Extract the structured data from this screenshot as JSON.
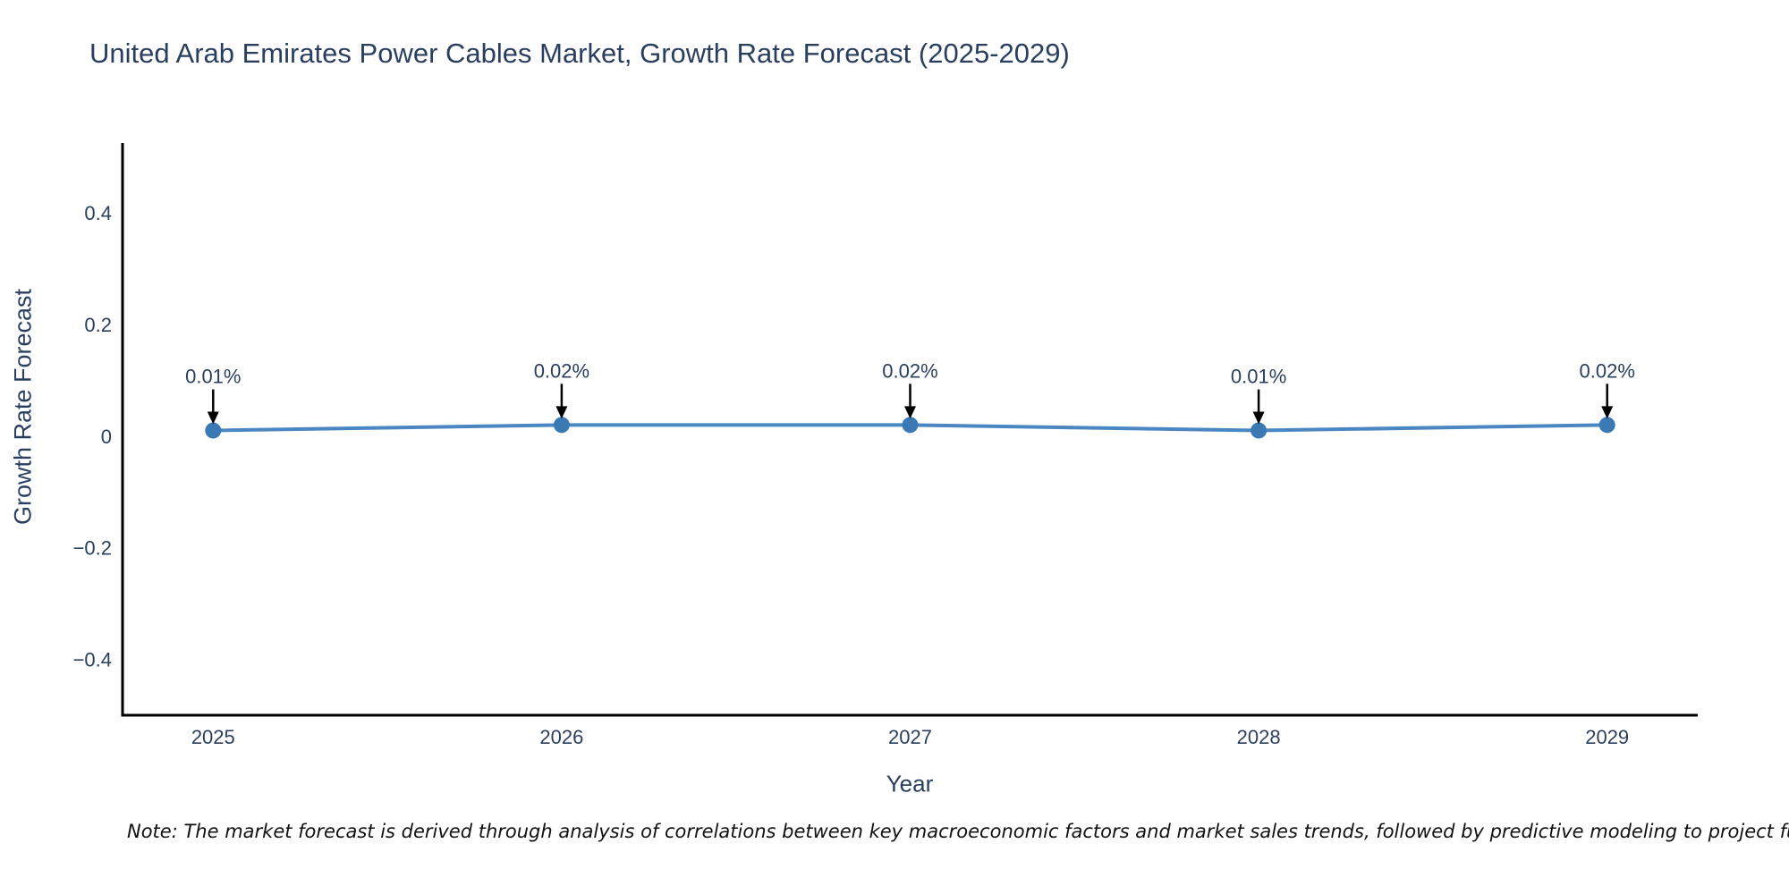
{
  "chart_data": {
    "type": "line",
    "title": "United Arab Emirates Power Cables Market, Growth Rate Forecast (2025-2029)",
    "xlabel": "Year",
    "ylabel": "Growth Rate Forecast",
    "x": [
      2025,
      2026,
      2027,
      2028,
      2029
    ],
    "series": [
      {
        "name": "Growth Rate Forecast",
        "values": [
          0.01,
          0.02,
          0.02,
          0.01,
          0.02
        ]
      }
    ],
    "point_labels": [
      "0.01%",
      "0.02%",
      "0.02%",
      "0.01%",
      "0.02%"
    ],
    "xticks": {
      "values": [
        2025,
        2026,
        2027,
        2028,
        2029
      ],
      "labels": [
        "2025",
        "2026",
        "2027",
        "2028",
        "2029"
      ]
    },
    "yticks": {
      "values": [
        0.4,
        0.2,
        0,
        -0.2,
        -0.4
      ],
      "labels": [
        "0.4",
        "0.2",
        "0",
        "−0.2",
        "−0.4"
      ]
    },
    "xlim": [
      2024.74,
      2029.26
    ],
    "ylim": [
      -0.5,
      0.525
    ],
    "grid": false,
    "legend": "none",
    "colors": {
      "line": "#4a86c2",
      "marker": "#3b79b5",
      "axis": "#000000",
      "text": "#2a3f5f",
      "annotation_text": "#2a3f5f",
      "annotation_arrow": "#000000",
      "background": "#ffffff"
    }
  },
  "note": {
    "text": "Note: The market forecast is derived through analysis of correlations between key macroeconomic factors and market sales trends, followed by predictive modeling to project future sa"
  }
}
